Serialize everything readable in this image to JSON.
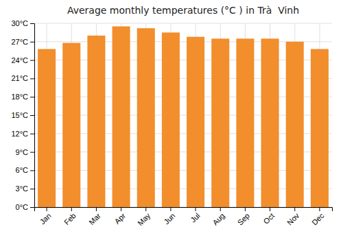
{
  "chart_data": {
    "type": "bar",
    "title": "Average monthly temperatures (°C ) in Trà  Vinh",
    "categories": [
      "Jan",
      "Feb",
      "Mar",
      "Apr",
      "May",
      "Jun",
      "Jul",
      "Aug",
      "Sep",
      "Oct",
      "Nov",
      "Dec"
    ],
    "values": [
      25.8,
      26.8,
      28.0,
      29.5,
      29.2,
      28.5,
      27.8,
      27.5,
      27.5,
      27.5,
      27.0,
      25.8
    ],
    "ylim": [
      0,
      30
    ],
    "yticks": [
      {
        "value": 0,
        "label": "0°C"
      },
      {
        "value": 3,
        "label": "3°C"
      },
      {
        "value": 6,
        "label": "6°C"
      },
      {
        "value": 9,
        "label": "9°C"
      },
      {
        "value": 12,
        "label": "12°C"
      },
      {
        "value": 15,
        "label": "15°C"
      },
      {
        "value": 18,
        "label": "18°C"
      },
      {
        "value": 21,
        "label": "21°C"
      },
      {
        "value": 24,
        "label": "24°C"
      },
      {
        "value": 27,
        "label": "27°C"
      },
      {
        "value": 30,
        "label": "30°C"
      }
    ],
    "grid": true
  }
}
